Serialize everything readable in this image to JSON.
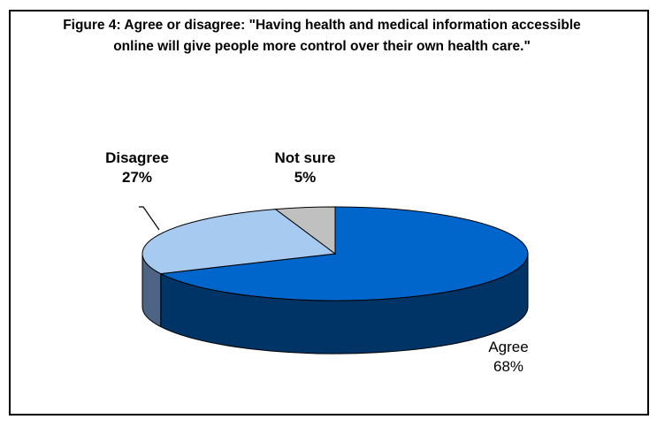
{
  "chart_data": {
    "type": "pie",
    "title": "Figure 4: Agree or disagree: \"Having health and medical information accessible online will give people more control over their own health care.\"",
    "slices": [
      {
        "label": "Agree",
        "value": 68,
        "value_label": "68%",
        "color": "#0066cc",
        "side_color": "#003366"
      },
      {
        "label": "Disagree",
        "value": 27,
        "value_label": "27%",
        "color": "#a6caf0",
        "side_color": "#4d6485"
      },
      {
        "label": "Not sure",
        "value": 5,
        "value_label": "5%",
        "color": "#c0c0c0",
        "side_color": "#808080"
      }
    ],
    "legend": "none"
  }
}
